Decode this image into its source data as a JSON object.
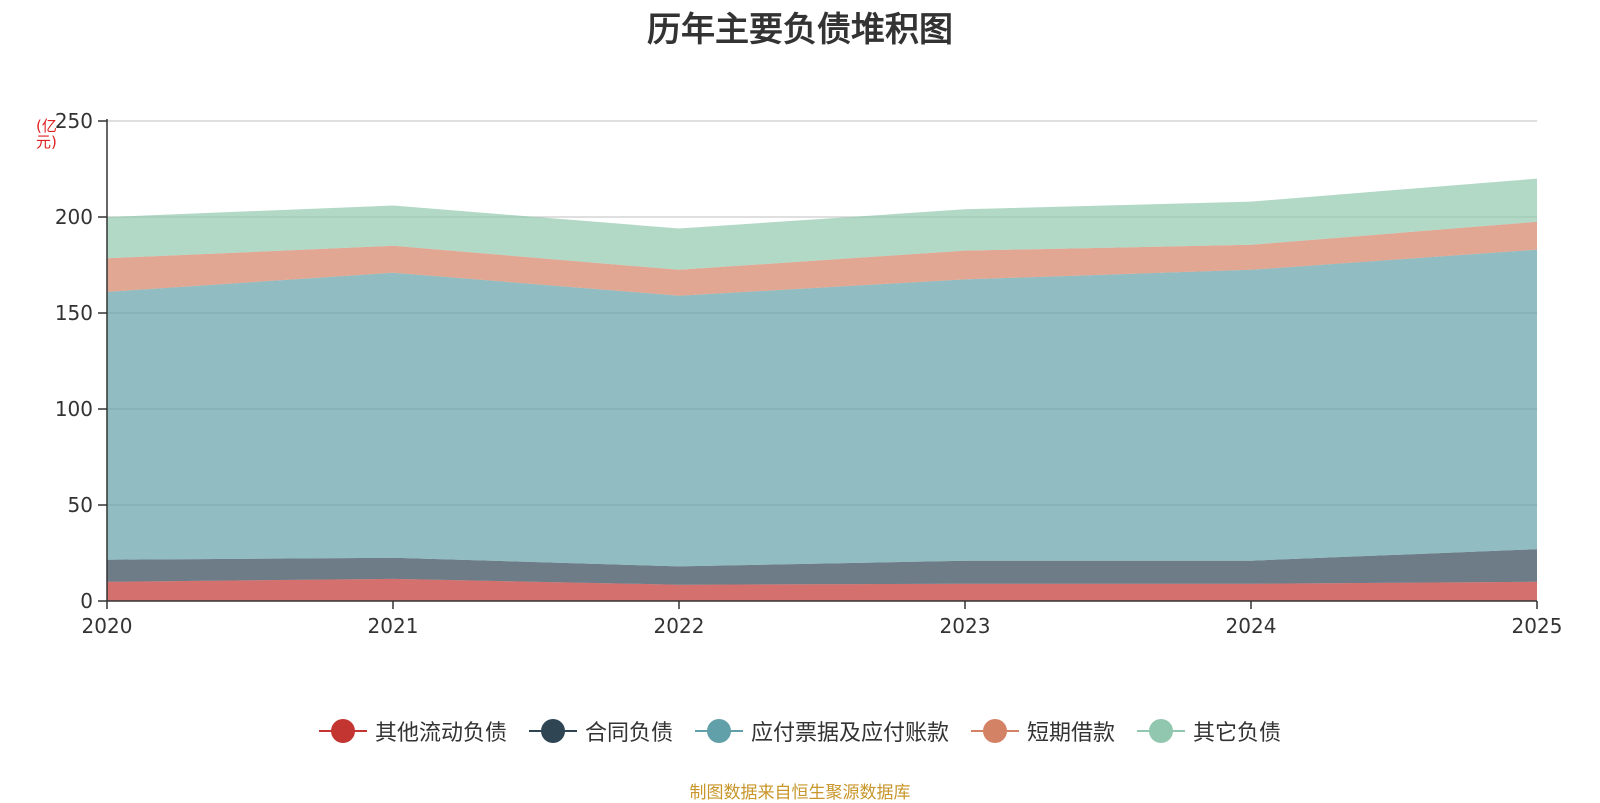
{
  "chart_data": {
    "type": "area",
    "stacked": true,
    "title": "历年主要负债堆积图",
    "ylabel": "(亿元)",
    "xlabel": "",
    "x": [
      "2020",
      "2021",
      "2022",
      "2023",
      "2024",
      "2025"
    ],
    "ylim": [
      0,
      250
    ],
    "yticks": [
      "0",
      "50",
      "100",
      "150",
      "200",
      "250"
    ],
    "grid": true,
    "legend_position": "bottom",
    "series": [
      {
        "name": "其他流动负债",
        "color": "#c23531",
        "values": [
          10,
          11.5,
          8.5,
          9,
          9,
          10
        ]
      },
      {
        "name": "合同负债",
        "color": "#2f4554",
        "values": [
          11.5,
          11,
          9.5,
          12,
          12,
          17
        ]
      },
      {
        "name": "应付票据及应付账款",
        "color": "#61a0a8",
        "values": [
          139.5,
          148.5,
          141,
          146.5,
          151.5,
          156
        ]
      },
      {
        "name": "短期借款",
        "color": "#d48265",
        "values": [
          17.5,
          14,
          13.5,
          15,
          13,
          14.5
        ]
      },
      {
        "name": "其它负债",
        "color": "#91c7ae",
        "values": [
          21.5,
          21,
          21.5,
          21.5,
          22.5,
          22.5
        ]
      }
    ]
  },
  "source_note": "制图数据来自恒生聚源数据库"
}
